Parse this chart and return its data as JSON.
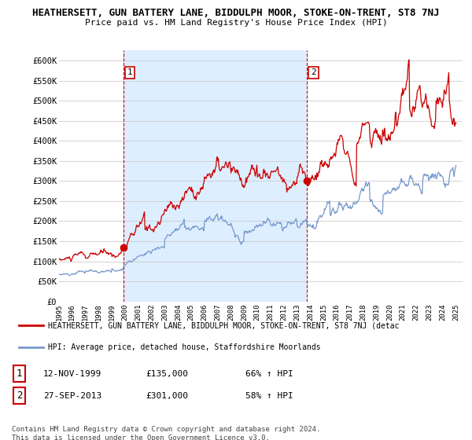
{
  "title": "HEATHERSETT, GUN BATTERY LANE, BIDDULPH MOOR, STOKE-ON-TRENT, ST8 7NJ",
  "subtitle": "Price paid vs. HM Land Registry's House Price Index (HPI)",
  "ylim": [
    0,
    625000
  ],
  "yticks": [
    0,
    50000,
    100000,
    150000,
    200000,
    250000,
    300000,
    350000,
    400000,
    450000,
    500000,
    550000,
    600000
  ],
  "ytick_labels": [
    "£0",
    "£50K",
    "£100K",
    "£150K",
    "£200K",
    "£250K",
    "£300K",
    "£350K",
    "£400K",
    "£450K",
    "£500K",
    "£550K",
    "£600K"
  ],
  "red_line_color": "#cc0000",
  "blue_line_color": "#7799cc",
  "shade_color": "#ddeeff",
  "sale1_year": 1999.87,
  "sale1_price": 135000,
  "sale1_label": "1",
  "sale1_date": "12-NOV-1999",
  "sale1_hpi": "66% ↑ HPI",
  "sale2_year": 2013.74,
  "sale2_price": 301000,
  "sale2_label": "2",
  "sale2_date": "27-SEP-2013",
  "sale2_hpi": "58% ↑ HPI",
  "legend_red": "HEATHERSETT, GUN BATTERY LANE, BIDDULPH MOOR, STOKE-ON-TRENT, ST8 7NJ (detac",
  "legend_blue": "HPI: Average price, detached house, Staffordshire Moorlands",
  "footer1": "Contains HM Land Registry data © Crown copyright and database right 2024.",
  "footer2": "This data is licensed under the Open Government Licence v3.0.",
  "background_color": "#ffffff",
  "grid_color": "#cccccc"
}
